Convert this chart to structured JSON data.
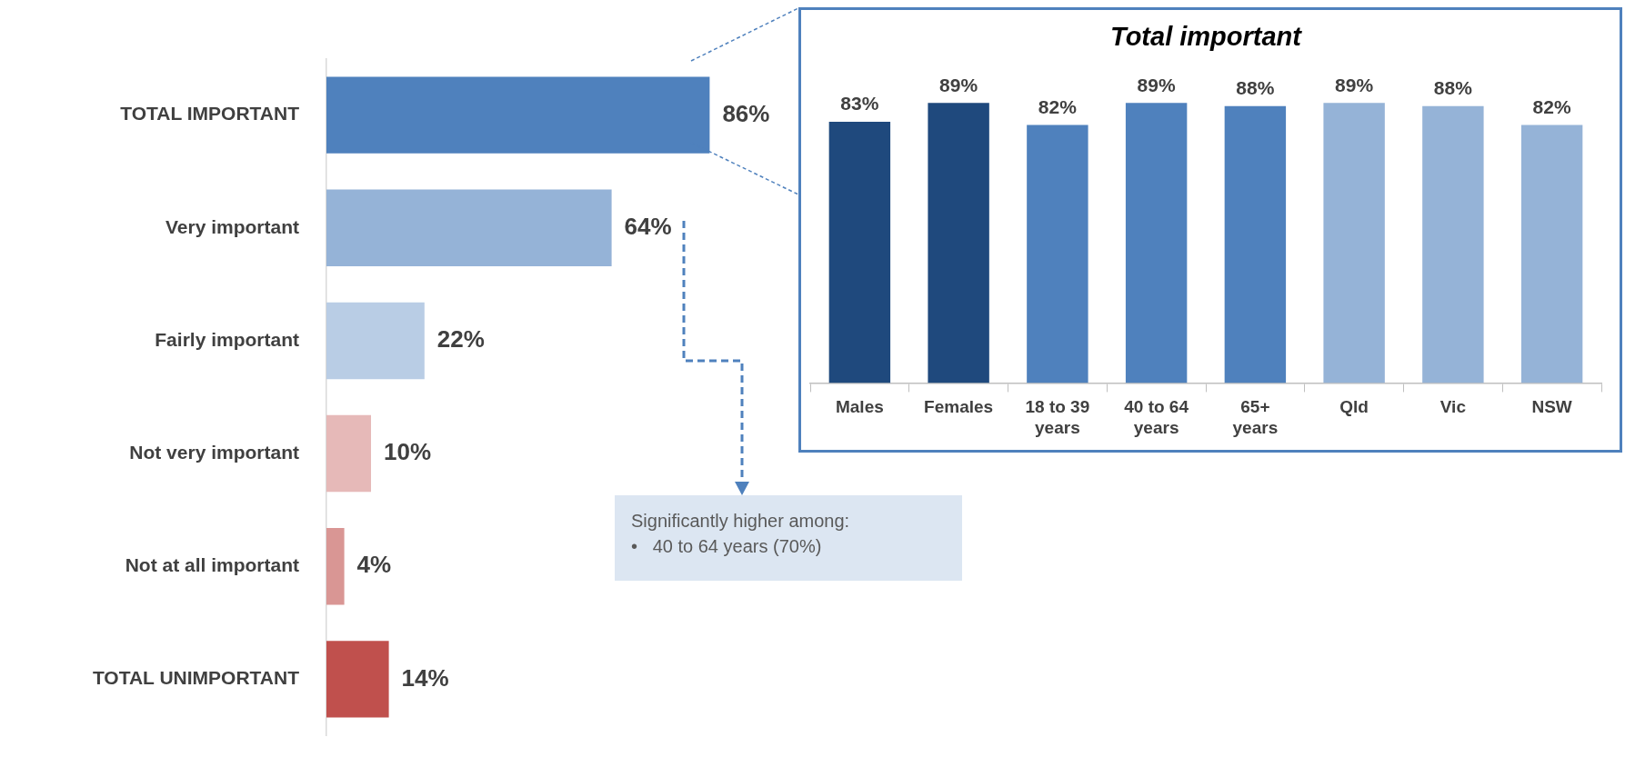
{
  "chart_data": [
    {
      "type": "bar",
      "orientation": "horizontal",
      "categories": [
        "TOTAL IMPORTANT",
        "Very important",
        "Fairly important",
        "Not very important",
        "Not at all important",
        "TOTAL UNIMPORTANT"
      ],
      "values": [
        86,
        64,
        22,
        10,
        4,
        14
      ],
      "colors": [
        "#4f81bd",
        "#95b3d7",
        "#b9cde5",
        "#e6b9b8",
        "#d99694",
        "#c0504d"
      ],
      "value_labels": [
        "86%",
        "64%",
        "22%",
        "10%",
        "4%",
        "14%"
      ],
      "tick_labels": "y",
      "annotations": [
        "Significantly higher among:",
        "•   40 to 64 years (70%)"
      ]
    },
    {
      "type": "bar",
      "title": "Total important",
      "categories": [
        "Males",
        "Females",
        "18 to 39 years",
        "40 to 64 years",
        "65+ years",
        "Qld",
        "Vic",
        "NSW"
      ],
      "values": [
        83,
        89,
        82,
        89,
        88,
        89,
        88,
        82
      ],
      "colors": [
        "#1f497d",
        "#1f497d",
        "#4f81bd",
        "#4f81bd",
        "#4f81bd",
        "#95b3d7",
        "#95b3d7",
        "#95b3d7"
      ],
      "value_labels": [
        "83%",
        "89%",
        "82%",
        "89%",
        "88%",
        "89%",
        "88%",
        "82%"
      ],
      "tick_labels": "x"
    }
  ]
}
